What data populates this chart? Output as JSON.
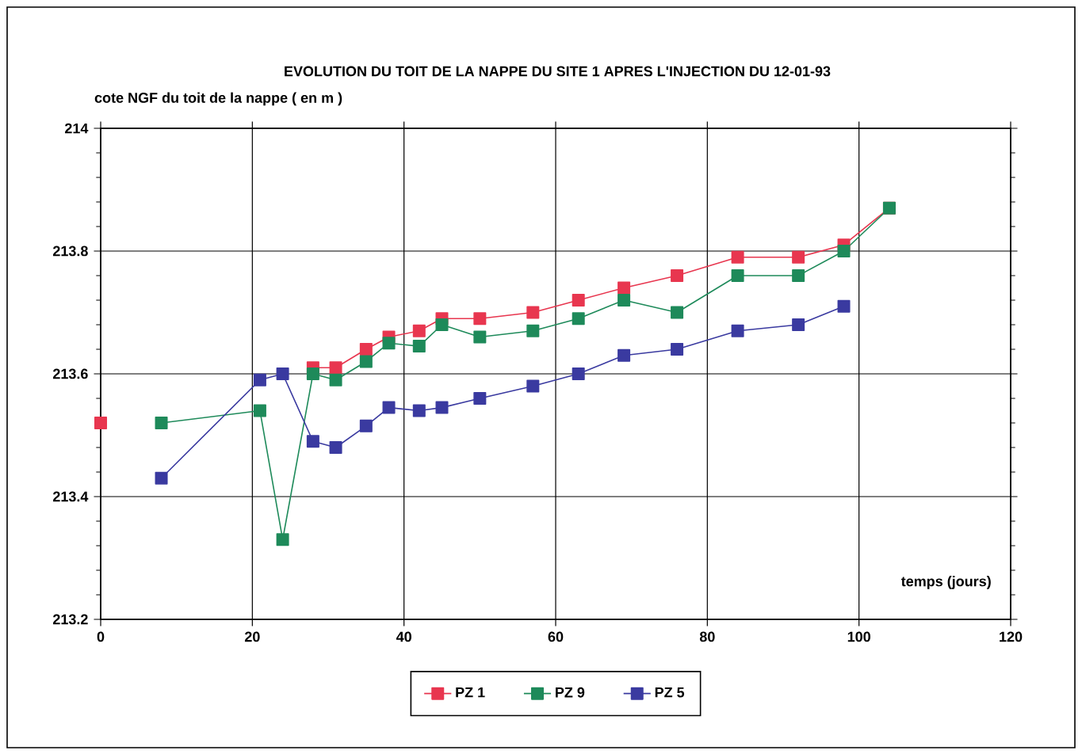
{
  "chart_data": {
    "type": "line",
    "title": "EVOLUTION DU TOIT DE LA NAPPE DU SITE 1 APRES L'INJECTION DU 12-01-93",
    "ylabel": "cote NGF du toit de la nappe ( en m )",
    "xlabel": "temps (jours)",
    "xlim": [
      0,
      120
    ],
    "xticks": [
      0,
      20,
      40,
      60,
      80,
      100,
      120
    ],
    "ylim": [
      213.2,
      214
    ],
    "yticks": [
      213.2,
      213.4,
      213.6,
      213.8,
      214
    ],
    "grid": true,
    "legend": "bottom",
    "marker": "square",
    "line_style": "solid",
    "series": [
      {
        "name": "PZ 1",
        "color": "#e8364f",
        "x": [
          0,
          8,
          28,
          31,
          35,
          38,
          42,
          45,
          50,
          57,
          63,
          69,
          76,
          84,
          92,
          98,
          104
        ],
        "values": [
          213.52,
          null,
          213.61,
          213.61,
          213.64,
          213.66,
          213.67,
          213.69,
          213.69,
          213.7,
          213.72,
          213.74,
          213.76,
          213.79,
          213.79,
          213.81,
          213.87
        ]
      },
      {
        "name": "PZ 9",
        "color": "#1e8a5a",
        "x": [
          8,
          21,
          24,
          28,
          31,
          35,
          38,
          42,
          45,
          50,
          57,
          63,
          69,
          76,
          84,
          92,
          98,
          104
        ],
        "values": [
          213.52,
          213.54,
          213.33,
          213.6,
          213.59,
          213.62,
          213.65,
          213.645,
          213.68,
          213.66,
          213.67,
          213.69,
          213.72,
          213.7,
          213.76,
          213.76,
          213.8,
          213.87
        ]
      },
      {
        "name": "PZ 5",
        "color": "#3a3aa0",
        "x": [
          8,
          21,
          24,
          28,
          31,
          35,
          38,
          42,
          45,
          50,
          57,
          63,
          69,
          76,
          84,
          92,
          98
        ],
        "values": [
          213.43,
          213.59,
          213.6,
          213.49,
          213.48,
          213.515,
          213.545,
          213.54,
          213.545,
          213.56,
          213.58,
          213.6,
          213.63,
          213.64,
          213.67,
          213.68,
          213.71
        ]
      }
    ]
  }
}
